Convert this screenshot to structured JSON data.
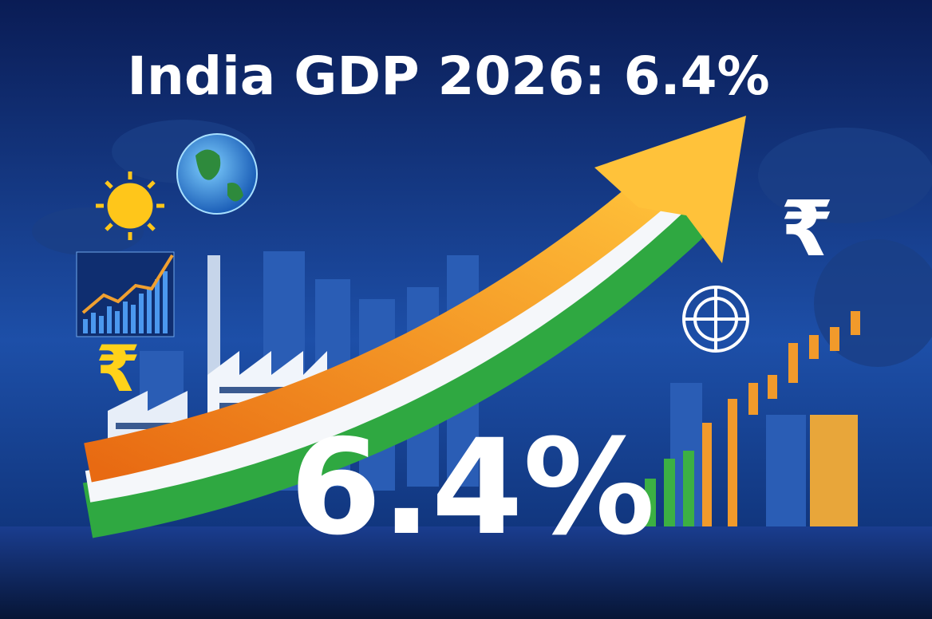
{
  "header": {
    "title": "India GDP 2026: 6.4%"
  },
  "headline": {
    "figure": "6.4%"
  },
  "symbols": {
    "rupee_left": "₹",
    "rupee_right": "₹"
  }
}
